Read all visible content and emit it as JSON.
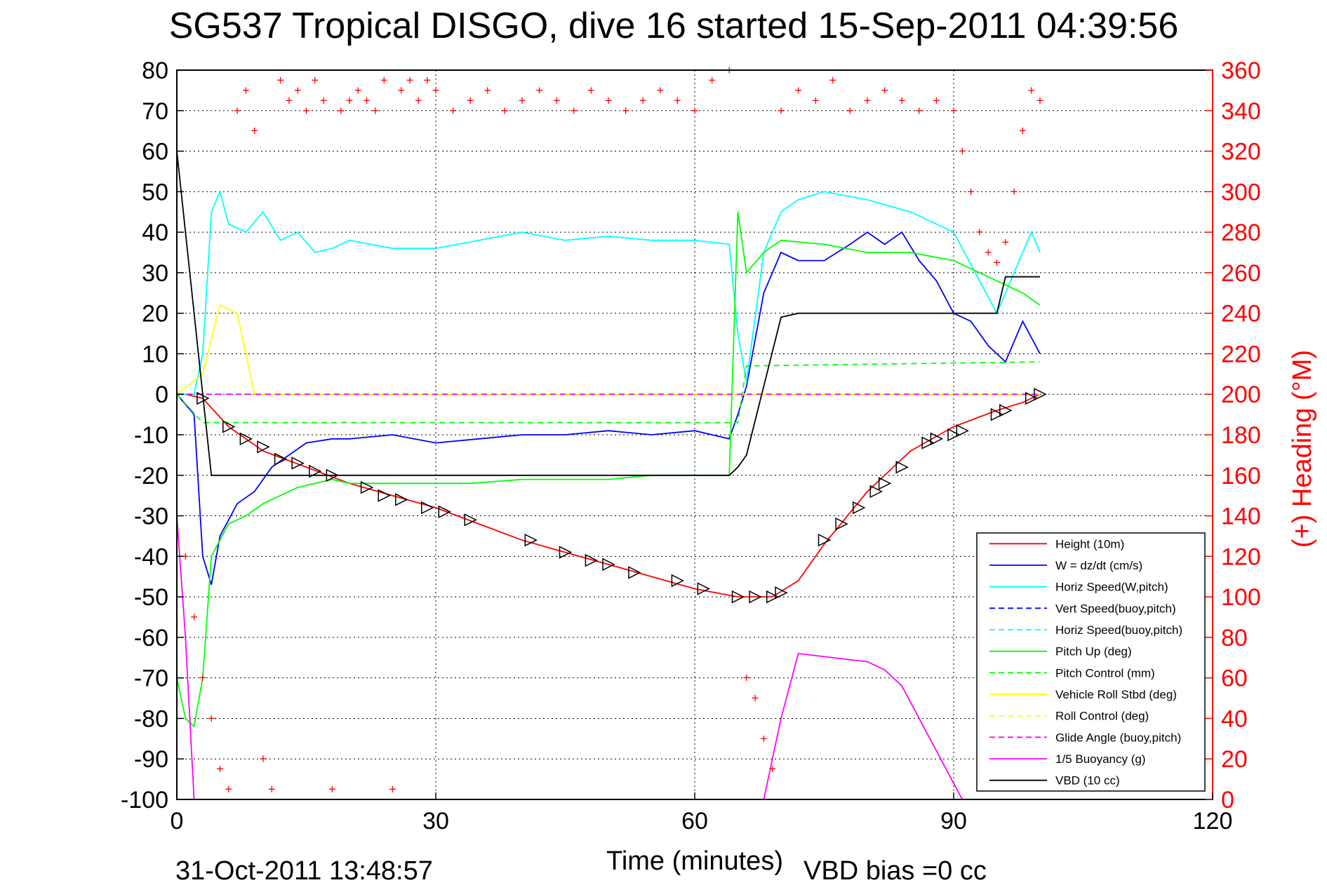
{
  "chart_data": {
    "type": "line",
    "title": "SG537 Tropical DISGO, dive 16 started 15-Sep-2011 04:39:56",
    "xlabel": "Time (minutes)",
    "ylabel_right": "(+) Heading (°M)",
    "footer_date": "31-Oct-2011 13:48:57",
    "vbd_bias": "VBD bias =0 cc",
    "xlim": [
      0,
      120
    ],
    "ylim": [
      -100,
      80
    ],
    "y2lim": [
      0,
      360
    ],
    "xticks": [
      0,
      30,
      60,
      90,
      120
    ],
    "yticks": [
      80,
      70,
      60,
      50,
      40,
      30,
      20,
      10,
      0,
      -10,
      -20,
      -30,
      -40,
      -50,
      -60,
      -70,
      -80,
      -90,
      -100
    ],
    "y2ticks": [
      360,
      340,
      320,
      300,
      280,
      260,
      240,
      220,
      200,
      180,
      160,
      140,
      120,
      100,
      80,
      60,
      40,
      20,
      0
    ],
    "grid": true,
    "legend_position": "bottom-right",
    "legend": [
      {
        "label": "Height (10m)",
        "color": "#ff0000",
        "dash": "solid"
      },
      {
        "label": "W = dz/dt (cm/s)",
        "color": "#0000ff",
        "dash": "solid"
      },
      {
        "label": "Horiz Speed(W,pitch)",
        "color": "#00ffff",
        "dash": "solid"
      },
      {
        "label": "Vert Speed(buoy,pitch)",
        "color": "#0000ff",
        "dash": "dashed"
      },
      {
        "label": "Horiz Speed(buoy,pitch)",
        "color": "#00ffff",
        "dash": "dashed"
      },
      {
        "label": "Pitch Up (deg)",
        "color": "#00ff00",
        "dash": "solid"
      },
      {
        "label": "Pitch Control (mm)",
        "color": "#00ff00",
        "dash": "dashed"
      },
      {
        "label": "Vehicle Roll Stbd (deg)",
        "color": "#ffff00",
        "dash": "solid"
      },
      {
        "label": "Roll Control (deg)",
        "color": "#ffff00",
        "dash": "dashed"
      },
      {
        "label": "Glide Angle (buoy,pitch)",
        "color": "#ff00ff",
        "dash": "dashed"
      },
      {
        "label": "1/5 Buoyancy (g)",
        "color": "#ff00ff",
        "dash": "solid"
      },
      {
        "label": "VBD (10 cc)",
        "color": "#000000",
        "dash": "solid"
      }
    ],
    "series": [
      {
        "name": "Height (10m)",
        "color": "#ff0000",
        "x": [
          0,
          1,
          3,
          6,
          10,
          15,
          20,
          25,
          30,
          35,
          40,
          45,
          50,
          55,
          60,
          65,
          67,
          69,
          72,
          75,
          80,
          85,
          90,
          95,
          98,
          100
        ],
        "y": [
          0,
          0,
          -1,
          -8,
          -14,
          -18,
          -22,
          -25,
          -28,
          -32,
          -36,
          -39,
          -42,
          -45,
          -48,
          -50,
          -50,
          -50,
          -46,
          -37,
          -24,
          -14,
          -8,
          -4,
          -2,
          0
        ]
      },
      {
        "name": "W = dz/dt (cm/s)",
        "color": "#0000ff",
        "x": [
          0,
          2,
          3,
          4,
          5,
          7,
          9,
          11,
          13,
          15,
          18,
          20,
          25,
          30,
          35,
          40,
          45,
          50,
          55,
          60,
          64,
          65,
          66,
          68,
          70,
          72,
          75,
          78,
          80,
          82,
          84,
          86,
          88,
          90,
          92,
          94,
          96,
          98,
          100
        ],
        "y": [
          0,
          -5,
          -40,
          -47,
          -35,
          -27,
          -24,
          -18,
          -15,
          -12,
          -11,
          -11,
          -10,
          -12,
          -11,
          -10,
          -10,
          -9,
          -10,
          -9,
          -11,
          -5,
          2,
          25,
          35,
          33,
          33,
          37,
          40,
          37,
          40,
          33,
          28,
          20,
          18,
          12,
          8,
          18,
          10
        ]
      },
      {
        "name": "Horiz Speed(W,pitch)",
        "color": "#00ffff",
        "x": [
          0,
          2,
          3,
          4,
          5,
          6,
          8,
          10,
          12,
          14,
          16,
          18,
          20,
          25,
          30,
          35,
          40,
          45,
          50,
          55,
          60,
          64,
          65,
          66,
          68,
          70,
          72,
          75,
          80,
          85,
          90,
          93,
          95,
          97,
          99,
          100
        ],
        "y": [
          0,
          0,
          10,
          45,
          50,
          42,
          40,
          45,
          38,
          40,
          35,
          36,
          38,
          36,
          36,
          38,
          40,
          38,
          39,
          38,
          38,
          37,
          15,
          3,
          35,
          45,
          48,
          50,
          48,
          45,
          40,
          28,
          20,
          30,
          40,
          35
        ]
      },
      {
        "name": "Pitch Up (deg)",
        "color": "#00ff00",
        "x": [
          0,
          1,
          2,
          3,
          4,
          6,
          8,
          10,
          14,
          18,
          20,
          25,
          30,
          34,
          40,
          45,
          50,
          55,
          60,
          64,
          65,
          66,
          68,
          70,
          75,
          80,
          85,
          90,
          95,
          98,
          100
        ],
        "y": [
          -70,
          -80,
          -82,
          -70,
          -40,
          -32,
          -30,
          -27,
          -23,
          -21,
          -22,
          -22,
          -22,
          -22,
          -21,
          -21,
          -21,
          -20,
          -20,
          -20,
          45,
          30,
          35,
          38,
          37,
          35,
          35,
          33,
          28,
          25,
          22
        ]
      },
      {
        "name": "Pitch Control (mm)",
        "color": "#00ff00",
        "dashed": true,
        "x": [
          0,
          3,
          65,
          66,
          100
        ],
        "y": [
          0,
          -7,
          -7,
          7,
          8
        ]
      },
      {
        "name": "Vehicle Roll Stbd (deg)",
        "color": "#ffff00",
        "x": [
          0,
          3,
          5,
          7,
          9,
          12,
          15,
          20,
          25,
          30,
          35,
          40,
          45,
          50,
          55,
          60,
          64,
          65,
          70,
          75,
          80,
          85,
          90,
          95,
          100
        ],
        "y": [
          0,
          5,
          22,
          20,
          0,
          0,
          0,
          0,
          0,
          0,
          0,
          0,
          0,
          0,
          0,
          0,
          0,
          0,
          0,
          0,
          0,
          0,
          0,
          0,
          0
        ]
      },
      {
        "name": "Glide Angle (buoy,pitch)",
        "color": "#ff00ff",
        "dashed": true,
        "x": [
          0,
          100
        ],
        "y": [
          0,
          0
        ]
      },
      {
        "name": "1/5 Buoyancy (g)",
        "color": "#ff00ff",
        "x": [
          0,
          1,
          2,
          68,
          70,
          72,
          80,
          82,
          84,
          86,
          88,
          90,
          91,
          92
        ],
        "y": [
          -30,
          -60,
          -100,
          -100,
          -80,
          -64,
          -66,
          -68,
          -72,
          -80,
          -88,
          -96,
          -100,
          -100
        ]
      },
      {
        "name": "VBD (10 cc)",
        "color": "#000000",
        "x": [
          0,
          3,
          4,
          64,
          65,
          66,
          70,
          72,
          95,
          96,
          100
        ],
        "y": [
          60,
          0,
          -20,
          -20,
          -18,
          -15,
          19,
          20,
          20,
          29,
          29
        ]
      }
    ],
    "heading_points": {
      "color": "#ff0000",
      "x": [
        1,
        2,
        3,
        4,
        5,
        6,
        7,
        8,
        9,
        10,
        11,
        12,
        13,
        14,
        15,
        16,
        17,
        18,
        19,
        20,
        21,
        22,
        23,
        24,
        25,
        26,
        27,
        28,
        29,
        30,
        32,
        34,
        36,
        38,
        40,
        42,
        44,
        46,
        48,
        50,
        52,
        54,
        56,
        58,
        60,
        62,
        64,
        66,
        67,
        68,
        69,
        70,
        72,
        74,
        76,
        78,
        80,
        82,
        84,
        86,
        88,
        90,
        91,
        92,
        93,
        94,
        95,
        96,
        97,
        98,
        99,
        100
      ],
      "y": [
        120,
        90,
        60,
        40,
        15,
        5,
        340,
        350,
        330,
        20,
        5,
        355,
        345,
        350,
        340,
        355,
        345,
        5,
        340,
        345,
        350,
        345,
        340,
        355,
        5,
        350,
        355,
        345,
        355,
        350,
        340,
        345,
        350,
        340,
        345,
        350,
        345,
        340,
        350,
        345,
        340,
        345,
        350,
        345,
        340,
        355,
        360,
        60,
        50,
        30,
        15,
        340,
        350,
        345,
        355,
        340,
        345,
        350,
        345,
        340,
        345,
        340,
        320,
        300,
        280,
        270,
        265,
        275,
        300,
        330,
        350,
        345
      ]
    },
    "markers": {
      "x": [
        3,
        6,
        8,
        10,
        12,
        14,
        16,
        18,
        22,
        24,
        26,
        29,
        31,
        34,
        41,
        45,
        48,
        50,
        53,
        58,
        61,
        65,
        67,
        69,
        70,
        75,
        77,
        79,
        81,
        82,
        84,
        87,
        88,
        90,
        91,
        95,
        96,
        99,
        100
      ],
      "y": [
        -1,
        -8,
        -11,
        -13,
        -16,
        -17,
        -19,
        -20,
        -23,
        -25,
        -26,
        -28,
        -29,
        -31,
        -36,
        -39,
        -41,
        -42,
        -44,
        -46,
        -48,
        -50,
        -50,
        -50,
        -49,
        -36,
        -32,
        -28,
        -24,
        -22,
        -18,
        -12,
        -11,
        -10,
        -9,
        -5,
        -4,
        -1,
        0
      ]
    }
  }
}
